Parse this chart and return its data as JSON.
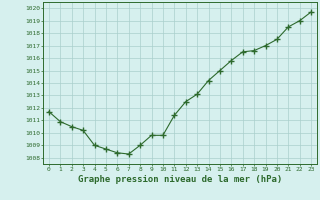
{
  "x": [
    0,
    1,
    2,
    3,
    4,
    5,
    6,
    7,
    8,
    9,
    10,
    11,
    12,
    13,
    14,
    15,
    16,
    17,
    18,
    19,
    20,
    21,
    22,
    23
  ],
  "y": [
    1011.7,
    1010.9,
    1010.5,
    1010.2,
    1009.0,
    1008.7,
    1008.4,
    1008.3,
    1009.0,
    1009.8,
    1009.8,
    1011.4,
    1012.5,
    1013.1,
    1014.2,
    1015.0,
    1015.8,
    1016.5,
    1016.6,
    1017.0,
    1017.5,
    1018.5,
    1019.0,
    1019.7
  ],
  "xlim": [
    -0.5,
    23.5
  ],
  "ylim": [
    1007.5,
    1020.5
  ],
  "yticks": [
    1008,
    1009,
    1010,
    1011,
    1012,
    1013,
    1014,
    1015,
    1016,
    1017,
    1018,
    1019,
    1020
  ],
  "xticks": [
    0,
    1,
    2,
    3,
    4,
    5,
    6,
    7,
    8,
    9,
    10,
    11,
    12,
    13,
    14,
    15,
    16,
    17,
    18,
    19,
    20,
    21,
    22,
    23
  ],
  "xlabel": "Graphe pression niveau de la mer (hPa)",
  "line_color": "#2d6a2d",
  "marker": "+",
  "marker_size": 4,
  "line_width": 0.8,
  "bg_color": "#d6f0ee",
  "grid_color": "#aacfcc",
  "tick_fontsize": 4.5,
  "xlabel_fontsize": 6.5,
  "xlabel_bold": true
}
